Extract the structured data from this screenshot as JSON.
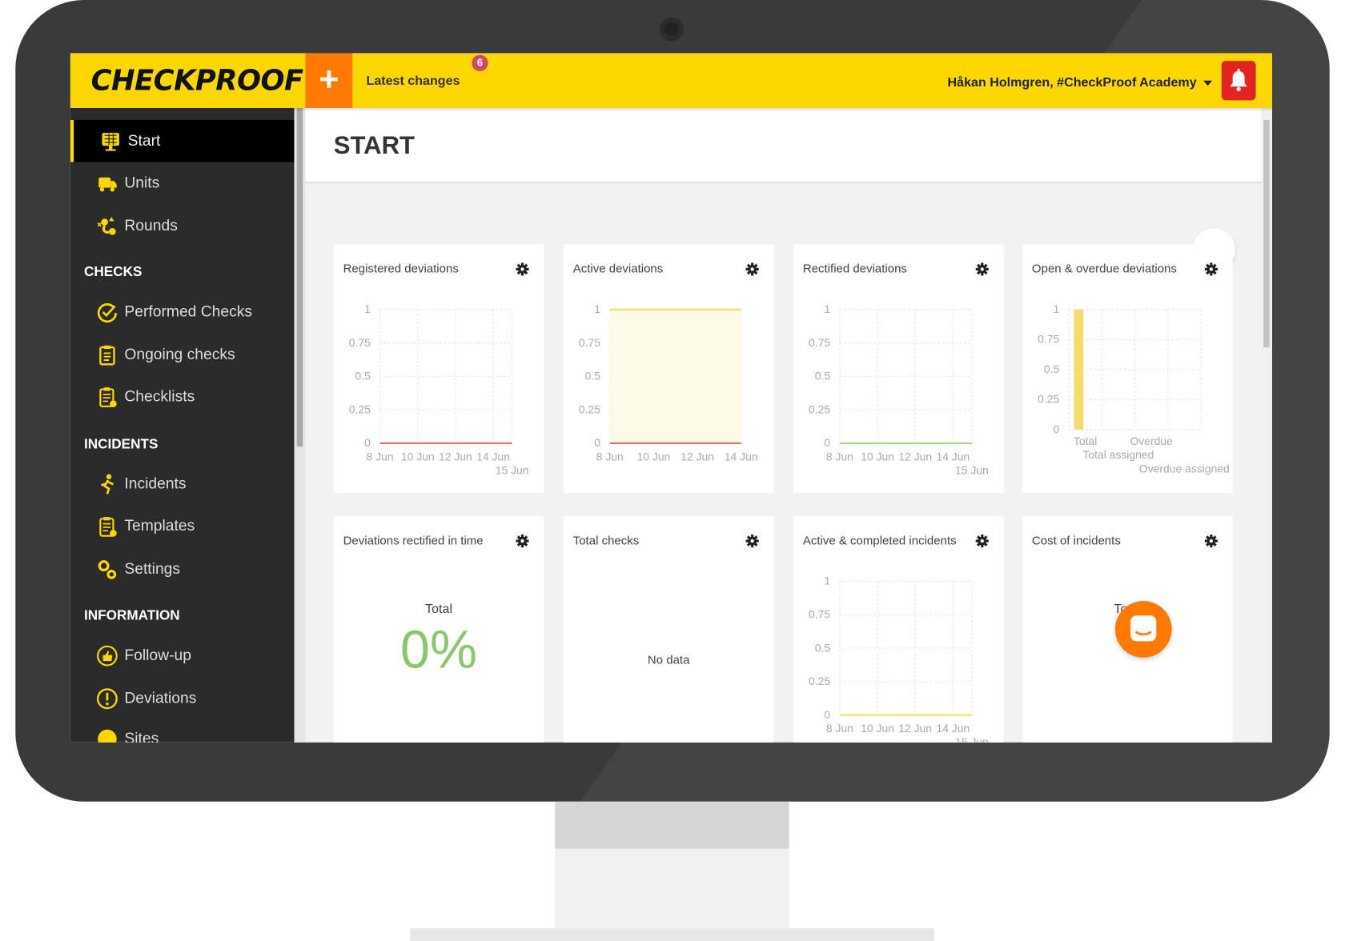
{
  "header": {
    "logo_text": "CHECKPROOF",
    "add_label": "+",
    "latest_changes": "Latest changes",
    "latest_changes_count": "6",
    "user": "Håkan Holmgren, #CheckProof Academy",
    "accent": "#ffd700",
    "add_color": "#ff7a00",
    "bell_color": "#e32222"
  },
  "sidebar": {
    "items": [
      {
        "label": "Start",
        "icon": "dashboard-icon",
        "active": true
      },
      {
        "label": "Units",
        "icon": "truck-icon"
      },
      {
        "label": "Rounds",
        "icon": "route-icon"
      }
    ],
    "sections": [
      {
        "title": "CHECKS",
        "items": [
          {
            "label": "Performed Checks",
            "icon": "check-circle-icon"
          },
          {
            "label": "Ongoing checks",
            "icon": "clipboard-icon"
          },
          {
            "label": "Checklists",
            "icon": "checklist-icon"
          }
        ]
      },
      {
        "title": "INCIDENTS",
        "items": [
          {
            "label": "Incidents",
            "icon": "slip-icon"
          },
          {
            "label": "Templates",
            "icon": "template-icon"
          },
          {
            "label": "Settings",
            "icon": "gears-icon"
          }
        ]
      },
      {
        "title": "INFORMATION",
        "items": [
          {
            "label": "Follow-up",
            "icon": "thumbs-up-icon"
          },
          {
            "label": "Deviations",
            "icon": "exclamation-icon"
          },
          {
            "label": "Sites",
            "icon": "globe-icon"
          }
        ]
      }
    ]
  },
  "main": {
    "page_title": "START",
    "cards": [
      {
        "title": "Registered deviations"
      },
      {
        "title": "Active deviations"
      },
      {
        "title": "Rectified deviations"
      },
      {
        "title": "Open & overdue deviations"
      },
      {
        "title": "Deviations rectified in time",
        "label": "Total",
        "value": "0%",
        "value_color": "#8cc56c"
      },
      {
        "title": "Total checks",
        "message": "No data"
      },
      {
        "title": "Active & completed incidents"
      },
      {
        "title": "Cost of incidents",
        "label": "Total",
        "value": "0"
      }
    ]
  },
  "chart_data": [
    {
      "type": "line",
      "card": 0,
      "x": [
        "8 Jun",
        "9 Jun",
        "10 Jun",
        "11 Jun",
        "12 Jun",
        "13 Jun",
        "14 Jun",
        "15 Jun"
      ],
      "xticks": [
        "8 Jun",
        "10 Jun",
        "12 Jun",
        "14 Jun",
        "15 Jun"
      ],
      "ylim": [
        0,
        1
      ],
      "yticks": [
        "0",
        "0.25",
        "0.5",
        "0.75",
        "1"
      ],
      "grid": true,
      "series": [
        {
          "color": "#f06a6a",
          "values": [
            0,
            0,
            0,
            0,
            0,
            0,
            0,
            0
          ]
        }
      ]
    },
    {
      "type": "area",
      "card": 1,
      "x": [
        "8 Jun",
        "9 Jun",
        "10 Jun",
        "11 Jun",
        "12 Jun",
        "13 Jun",
        "14 Jun"
      ],
      "xticks": [
        "8 Jun",
        "10 Jun",
        "12 Jun",
        "14 Jun"
      ],
      "ylim": [
        0,
        1
      ],
      "yticks": [
        "0",
        "0.25",
        "0.5",
        "0.75",
        "1"
      ],
      "grid": true,
      "series": [
        {
          "color": "#f0e05a",
          "fill": "#fdfbe8",
          "values": [
            1,
            1,
            1,
            1,
            1,
            1,
            1
          ]
        },
        {
          "color": "#f06a6a",
          "values": [
            0,
            0,
            0,
            0,
            0,
            0,
            0
          ]
        }
      ]
    },
    {
      "type": "line",
      "card": 2,
      "x": [
        "8 Jun",
        "9 Jun",
        "10 Jun",
        "11 Jun",
        "12 Jun",
        "13 Jun",
        "14 Jun",
        "15 Jun"
      ],
      "xticks": [
        "8 Jun",
        "10 Jun",
        "12 Jun",
        "14 Jun",
        "15 Jun"
      ],
      "ylim": [
        0,
        1
      ],
      "yticks": [
        "0",
        "0.25",
        "0.5",
        "0.75",
        "1"
      ],
      "grid": true,
      "series": [
        {
          "color": "#a6d48a",
          "values": [
            0,
            0,
            0,
            0,
            0,
            0,
            0,
            0
          ]
        }
      ]
    },
    {
      "type": "bar",
      "card": 3,
      "categories": [
        "Total",
        "Total assigned",
        "Overdue",
        "Overdue assigned"
      ],
      "ylim": [
        0,
        1
      ],
      "yticks": [
        "0",
        "0.25",
        "0.5",
        "0.75",
        "1"
      ],
      "grid": true,
      "series": [
        {
          "color": "#f2dc6a",
          "values": [
            1,
            0,
            0,
            0
          ]
        }
      ]
    },
    {
      "type": "line",
      "card": 6,
      "x": [
        "8 Jun",
        "9 Jun",
        "10 Jun",
        "11 Jun",
        "12 Jun",
        "13 Jun",
        "14 Jun",
        "15 Jun"
      ],
      "xticks": [
        "8 Jun",
        "10 Jun",
        "12 Jun",
        "14 Jun",
        "15 Jun"
      ],
      "ylim": [
        0,
        1
      ],
      "yticks": [
        "0",
        "0.25",
        "0.5",
        "0.75",
        "1"
      ],
      "grid": true,
      "series": [
        {
          "color": "#f0e05a",
          "values": [
            0,
            0,
            0,
            0,
            0,
            0,
            0,
            0
          ]
        }
      ]
    }
  ]
}
